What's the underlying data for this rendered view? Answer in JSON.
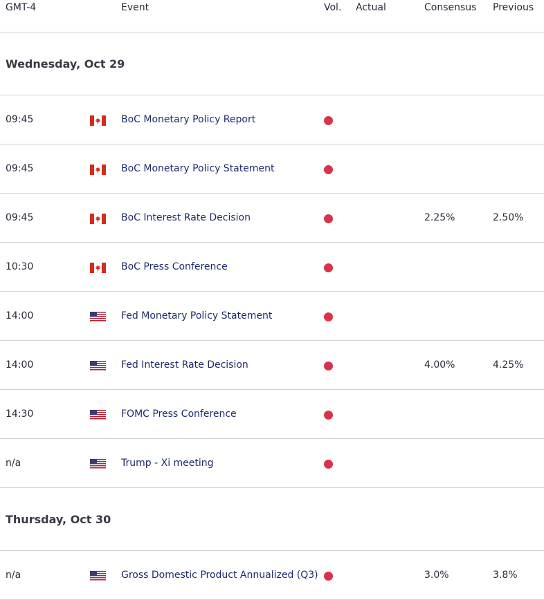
{
  "header": {
    "timezone": "GMT-4",
    "event": "Event",
    "vol": "Vol.",
    "actual": "Actual",
    "consensus": "Consensus",
    "previous": "Previous"
  },
  "days": [
    {
      "label": "Wednesday, Oct 29",
      "rows": [
        {
          "time": "09:45",
          "flag": "canada-flag-icon",
          "event": "BoC Monetary Policy Report",
          "vol": "high-volatility-dot",
          "actual": "",
          "consensus": "",
          "previous": ""
        },
        {
          "time": "09:45",
          "flag": "canada-flag-icon",
          "event": "BoC Monetary Policy Statement",
          "vol": "high-volatility-dot",
          "actual": "",
          "consensus": "",
          "previous": ""
        },
        {
          "time": "09:45",
          "flag": "canada-flag-icon",
          "event": "BoC Interest Rate Decision",
          "vol": "high-volatility-dot",
          "actual": "",
          "consensus": "2.25%",
          "previous": "2.50%"
        },
        {
          "time": "10:30",
          "flag": "canada-flag-icon",
          "event": "BoC Press Conference",
          "vol": "high-volatility-dot",
          "actual": "",
          "consensus": "",
          "previous": ""
        },
        {
          "time": "14:00",
          "flag": "us-flag-icon",
          "event": "Fed Monetary Policy Statement",
          "vol": "high-volatility-dot",
          "actual": "",
          "consensus": "",
          "previous": ""
        },
        {
          "time": "14:00",
          "flag": "us-flag-icon",
          "event": "Fed Interest Rate Decision",
          "vol": "high-volatility-dot",
          "actual": "",
          "consensus": "4.00%",
          "previous": "4.25%"
        },
        {
          "time": "14:30",
          "flag": "us-flag-icon",
          "event": "FOMC Press Conference",
          "vol": "high-volatility-dot",
          "actual": "",
          "consensus": "",
          "previous": ""
        },
        {
          "time": "n/a",
          "flag": "us-flag-icon",
          "event": "Trump - Xi meeting",
          "vol": "high-volatility-dot",
          "actual": "",
          "consensus": "",
          "previous": ""
        }
      ]
    },
    {
      "label": "Thursday, Oct 30",
      "rows": [
        {
          "time": "n/a",
          "flag": "us-flag-icon",
          "event": "Gross Domestic Product Annualized (Q3)",
          "vol": "high-volatility-dot",
          "actual": "",
          "consensus": "3.0%",
          "previous": "3.8%"
        }
      ]
    }
  ],
  "colors": {
    "high_volatility": "#d8334a",
    "event_link": "#1d2a6b",
    "divider": "#d2d2d2"
  }
}
